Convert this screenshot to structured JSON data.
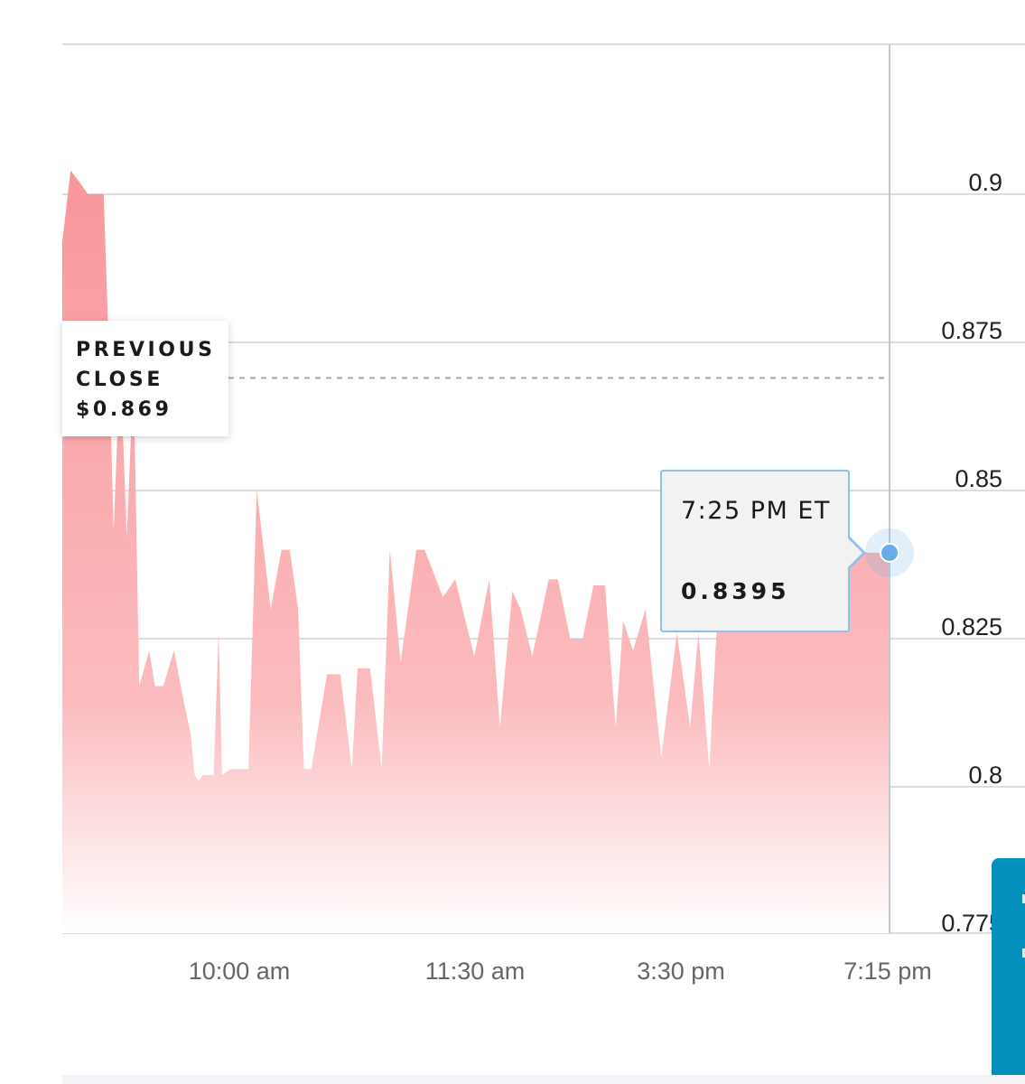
{
  "chart_data": {
    "type": "area",
    "x_ticks": [
      "10:00 am",
      "11:30 am",
      "3:30 pm",
      "7:15 pm"
    ],
    "y_ticks": [
      "0.9",
      "0.875",
      "0.85",
      "0.825",
      "0.8",
      "0.775"
    ],
    "ylim": [
      0.7755,
      0.9254
    ],
    "grid": "horizontal",
    "series": [
      {
        "color": "#f9a2a6",
        "x": [
          0,
          1.0,
          2.1,
          3.1,
          5.0,
          5.6,
          6.2,
          7.0,
          7.8,
          8.6,
          9.3,
          10.5,
          11.2,
          12.2,
          13.5,
          14.6,
          15.5,
          16.0,
          16.5,
          17.0,
          17.6,
          18.3,
          18.9,
          19.3,
          20.4,
          22.5,
          23.5,
          25.2,
          26.5,
          27.5,
          28.5,
          29.2,
          30.1,
          32.0,
          33.6,
          35.0,
          35.7,
          37.2,
          38.6,
          39.6,
          40.9,
          42.8,
          43.8,
          46.0,
          47.5,
          49.8,
          51.6,
          52.9,
          54.4,
          55.4,
          56.8,
          58.8,
          59.9,
          61.4,
          62.9,
          64.2,
          65.6,
          66.9,
          67.8,
          69.0,
          70.5,
          72.4,
          74.3,
          75.9,
          76.9,
          78.2,
          79.6,
          81.0,
          82.9,
          84.1,
          85.4,
          87.0,
          88.6,
          89.5,
          90.5,
          91.5,
          93.2,
          95.1,
          95.9,
          97.4,
          98.4,
          99.0,
          100.0
        ],
        "values": [
          0.892,
          0.904,
          0.902,
          0.9,
          0.9,
          0.875,
          0.843,
          0.872,
          0.842,
          0.87,
          0.817,
          0.823,
          0.817,
          0.817,
          0.823,
          0.815,
          0.809,
          0.802,
          0.801,
          0.802,
          0.802,
          0.802,
          0.826,
          0.802,
          0.803,
          0.803,
          0.85,
          0.83,
          0.84,
          0.84,
          0.83,
          0.803,
          0.803,
          0.819,
          0.819,
          0.803,
          0.82,
          0.82,
          0.803,
          0.84,
          0.821,
          0.84,
          0.84,
          0.832,
          0.835,
          0.822,
          0.835,
          0.81,
          0.833,
          0.83,
          0.822,
          0.835,
          0.835,
          0.825,
          0.825,
          0.834,
          0.834,
          0.81,
          0.828,
          0.823,
          0.83,
          0.805,
          0.826,
          0.81,
          0.826,
          0.803,
          0.8395,
          0.8395,
          0.8395,
          0.8395,
          0.8395,
          0.8395,
          0.8395,
          0.8395,
          0.8395,
          0.8395,
          0.8395,
          0.8395,
          0.8395,
          0.8395,
          0.8395,
          0.8395,
          0.8395
        ],
        "note_hidden_under_tooltip": false
      }
    ],
    "reference_line": {
      "value": 0.869
    }
  },
  "previous_close": {
    "line1": "PREVIOUS",
    "line2": "CLOSE",
    "value": "$0.869"
  },
  "tooltip": {
    "time": "7:25 PM ET",
    "value": "0.8395"
  },
  "colors": {
    "area_top": "#f9969b",
    "area_mid": "#fbbcbf",
    "area_bottom": "#ffffff",
    "grid": "#dcdce6",
    "crosshair": "#c8c8d0",
    "marker": "#6aade6",
    "side_panel": "#0390bd"
  }
}
